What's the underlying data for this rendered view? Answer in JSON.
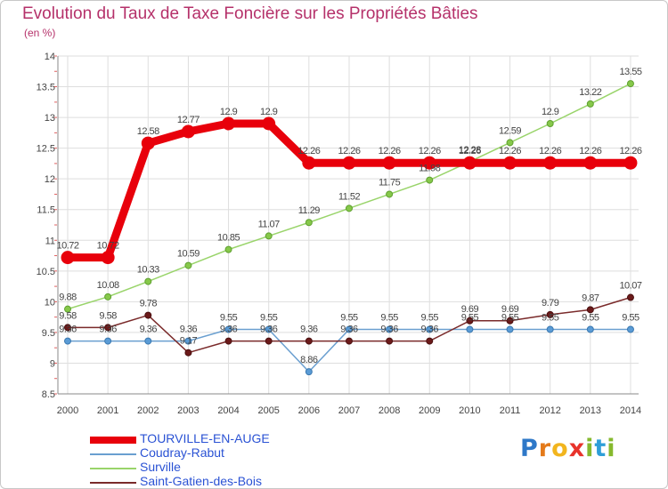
{
  "title": "Evolution du Taux de Taxe Foncière sur les Propriétés Bâties",
  "subtitle": "(en %)",
  "logo": {
    "letters": [
      "P",
      "r",
      "o",
      "x",
      "i",
      "t",
      "i"
    ],
    "colors": [
      "#2e78c8",
      "#e47a1a",
      "#f2b51e",
      "#e8332b",
      "#86b92e",
      "#2e9ed8",
      "#86b92e"
    ]
  },
  "chart_data": {
    "type": "line",
    "title": "Evolution du Taux de Taxe Foncière sur les Propriétés Bâties",
    "ylabel": "(en %)",
    "x": [
      "2000",
      "2001",
      "2002",
      "2003",
      "2004",
      "2005",
      "2006",
      "2007",
      "2008",
      "2009",
      "2010",
      "2011",
      "2012",
      "2013",
      "2014"
    ],
    "ylim": [
      8.5,
      14
    ],
    "yticks": [
      "8.5",
      "9",
      "9.5",
      "10",
      "10.5",
      "11",
      "11.5",
      "12",
      "12.5",
      "13",
      "13.5",
      "14"
    ],
    "series": [
      {
        "name": "TOURVILLE-EN-AUGE",
        "color": "#e8000b",
        "values": [
          10.72,
          10.72,
          12.58,
          12.77,
          12.9,
          12.9,
          12.26,
          12.26,
          12.26,
          12.26,
          12.26,
          12.26,
          12.26,
          12.26,
          12.26
        ],
        "labels": [
          "10.72",
          "10.72",
          "12.58",
          "12.77",
          "12.9",
          "12.9",
          "12.26",
          "12.26",
          "12.26",
          "12.26",
          "12.26",
          "12.26",
          "12.26",
          "12.26",
          "12.26"
        ]
      },
      {
        "name": "Coudray-Rabut",
        "color": "#6a9fd0",
        "values": [
          9.36,
          9.36,
          9.36,
          9.36,
          9.55,
          9.55,
          8.86,
          9.55,
          9.55,
          9.55,
          9.55,
          9.55,
          9.55,
          9.55,
          9.55
        ],
        "labels": [
          "9.36",
          "9.36",
          "9.36",
          "9.36",
          "9.55",
          "9.55",
          "8.86",
          "9.55",
          "9.55",
          "9.55",
          "9.55",
          "9.55",
          "9.55",
          "9.55",
          "9.55"
        ]
      },
      {
        "name": "Surville",
        "color": "#99d46a",
        "values": [
          9.88,
          10.08,
          10.33,
          10.59,
          10.85,
          11.07,
          11.29,
          11.52,
          11.75,
          11.98,
          12.28,
          12.59,
          12.9,
          13.22,
          13.55
        ],
        "labels": [
          "9.88",
          "10.08",
          "10.33",
          "10.59",
          "10.85",
          "11.07",
          "11.29",
          "11.52",
          "11.75",
          "11.98",
          "12.28",
          "12.59",
          "12.9",
          "13.22",
          "13.55"
        ]
      },
      {
        "name": "Saint-Gatien-des-Bois",
        "color": "#7a2a2a",
        "values": [
          9.58,
          9.58,
          9.78,
          9.17,
          9.36,
          9.36,
          9.36,
          9.36,
          9.36,
          9.36,
          9.69,
          9.69,
          9.79,
          9.87,
          10.07
        ],
        "labels": [
          "9.58",
          "9.58",
          "9.78",
          "9.17",
          "9.36",
          "9.36",
          "9.36",
          "9.36",
          "9.36",
          "9.36",
          "9.69",
          "9.69",
          "9.79",
          "9.87",
          "10.07"
        ]
      }
    ]
  }
}
